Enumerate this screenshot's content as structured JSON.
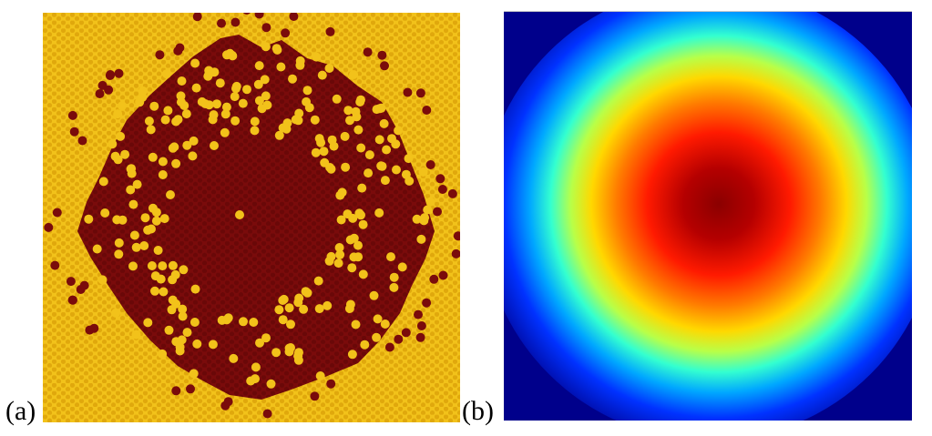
{
  "figure": {
    "panels": [
      {
        "id": "a",
        "label": "(a)"
      },
      {
        "id": "b",
        "label": "(b)"
      }
    ]
  },
  "colors": {
    "lattice_background": "#f2c21a",
    "lattice_dot": "#e5b10f",
    "cluster_dark": "#7a0b0b",
    "heatmap_edge": "#00008b",
    "heatmap_core": "#8b0000"
  }
}
